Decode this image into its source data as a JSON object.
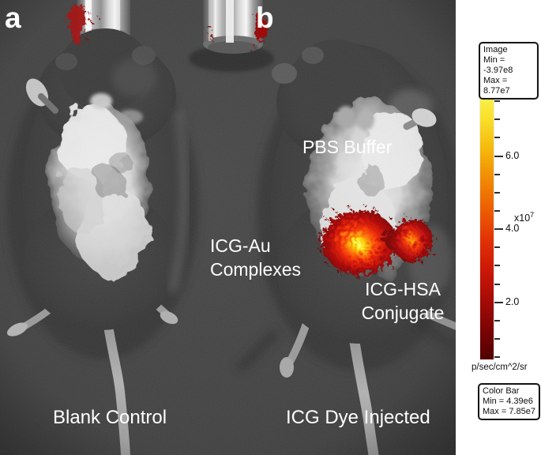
{
  "figure": {
    "panel_a": "a",
    "panel_b": "b"
  },
  "annotations": {
    "pbs_buffer": "PBS Buffer",
    "icg_au_line1": "ICG-Au",
    "icg_au_line2": "Complexes",
    "icg_hsa_line1": "ICG-HSA",
    "icg_hsa_line2": "Conjugate",
    "blank_control": "Blank Control",
    "icg_dye_injected": "ICG Dye Injected"
  },
  "image_stats_box": {
    "title": "Image",
    "min": "Min = -3.97e8",
    "max": "Max = 8.77e7"
  },
  "color_bar_box": {
    "title": "Color Bar",
    "min": "Min = 4.39e6",
    "max": "Max = 7.85e7"
  },
  "colorbar": {
    "units": "p/sec/cm^2/sr",
    "multiplier_base": "x10",
    "multiplier_exponent": "7",
    "scale_min_e7": 0.439,
    "scale_max_e7": 7.85,
    "tick_step_e7": 0.5,
    "labeled_ticks": [
      "6.0",
      "4.0",
      "2.0"
    ],
    "gradient_stops": [
      "#faf65a",
      "#f9e02b",
      "#f6b90c",
      "#f18a04",
      "#ec5f02",
      "#e33305",
      "#cd1807",
      "#a80b06",
      "#7c0404",
      "#510101"
    ],
    "colors": {
      "hotspot_core": "#ffffb0",
      "hotspot_hot": "#ffd400",
      "hotspot_mid": "#e31804",
      "hotspot_edge": "#6e0101",
      "photo_background": "#404040",
      "belly_highlight": "#ededed"
    }
  }
}
